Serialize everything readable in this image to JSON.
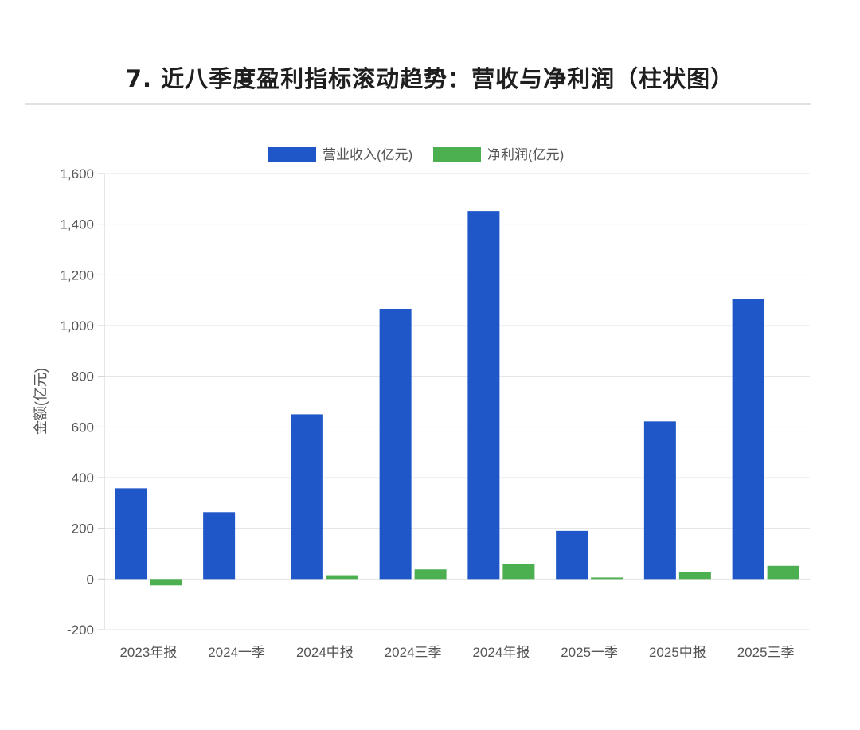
{
  "page": {
    "title": "7. 近八季度盈利指标滚动趋势：营收与净利润（柱状图）"
  },
  "chart_data": {
    "type": "bar",
    "title": "7. 近八季度盈利指标滚动趋势：营收与净利润（柱状图）",
    "xlabel": "",
    "ylabel": "金额(亿元)",
    "ylim": [
      -200,
      1600
    ],
    "yticks": [
      -200,
      0,
      200,
      400,
      600,
      800,
      1000,
      1200,
      1400,
      1600
    ],
    "ytick_labels": [
      "-200",
      "0",
      "200",
      "400",
      "600",
      "800",
      "1,000",
      "1,200",
      "1,400",
      "1,600"
    ],
    "grid": true,
    "legend_position": "top-center",
    "categories": [
      "2023年报",
      "2024一季",
      "2024中报",
      "2024三季",
      "2024年报",
      "2025一季",
      "2025中报",
      "2025三季"
    ],
    "series": [
      {
        "name": "营业收入(亿元)",
        "color": "#1f57c9",
        "values": [
          358,
          264,
          650,
          1066,
          1452,
          190,
          622,
          1105
        ]
      },
      {
        "name": "净利润(亿元)",
        "color": "#4caf50",
        "values": [
          -25,
          0,
          15,
          38,
          58,
          6,
          28,
          52
        ]
      }
    ]
  }
}
